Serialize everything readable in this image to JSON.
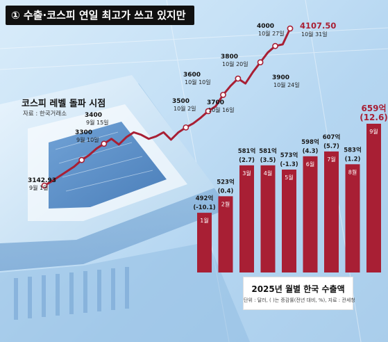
{
  "header": {
    "title": "① 수출·코스피 연일 최고가 쓰고 있지만"
  },
  "kospi": {
    "title": "코스피 레벨 돌파 시점",
    "source": "자료 : 한국거래소"
  },
  "exports": {
    "title": "2025년 월별 한국 수출액",
    "unit_note": "단위 : 달러, ( )는 증감률(전년 대비, %), 자료 : 관세청"
  },
  "colors": {
    "bar": "#a81f34",
    "line": "#a81f34",
    "value_text": "#a81f34"
  },
  "chart_data": [
    {
      "type": "line",
      "title": "코스피 레벨 돌파 시점",
      "annotations": [
        {
          "value": "3142.93",
          "date": "9월 1일"
        },
        {
          "value": "3300",
          "date": "9월 10일"
        },
        {
          "value": "3400",
          "date": "9월 15일"
        },
        {
          "value": "3500",
          "date": "10월 2일"
        },
        {
          "value": "3600",
          "date": "10월 10일"
        },
        {
          "value": "3700",
          "date": "10월 16일"
        },
        {
          "value": "3800",
          "date": "10월 20일"
        },
        {
          "value": "3900",
          "date": "10월 24일"
        },
        {
          "value": "4000",
          "date": "10월 27일"
        },
        {
          "value": "4107.50",
          "date": "10월 31일"
        }
      ],
      "y": [
        3142.93,
        3170,
        3200,
        3230,
        3260,
        3300,
        3330,
        3370,
        3400,
        3430,
        3395,
        3440,
        3470,
        3455,
        3430,
        3445,
        3470,
        3425,
        3470,
        3500,
        3525,
        3560,
        3600,
        3630,
        3700,
        3755,
        3800,
        3770,
        3840,
        3900,
        3960,
        4000,
        4010,
        4107.5
      ]
    },
    {
      "type": "bar",
      "title": "2025년 월별 한국 수출액",
      "categories": [
        "1월",
        "2월",
        "3월",
        "4월",
        "5월",
        "6월",
        "7월",
        "8월",
        "9월"
      ],
      "values": [
        492,
        523,
        581,
        581,
        573,
        598,
        607,
        583,
        659
      ],
      "value_labels": [
        "492억",
        "523억",
        "581억",
        "581억",
        "573억",
        "598억",
        "607억",
        "583억",
        "659억"
      ],
      "change_labels": [
        "(-10.1)",
        "(0.4)",
        "(2.7)",
        "(3.5)",
        "(-1.3)",
        "(4.3)",
        "(5.7)",
        "(1.2)",
        "(12.6)"
      ]
    }
  ]
}
